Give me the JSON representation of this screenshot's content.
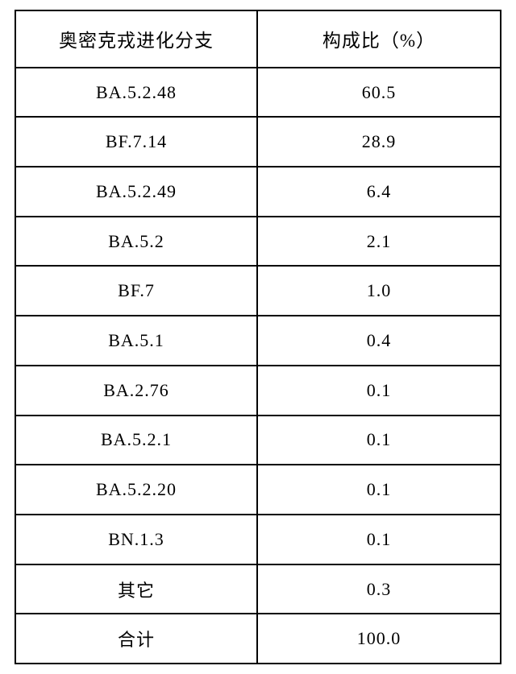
{
  "table": {
    "type": "table",
    "columns": [
      {
        "header": "奥密克戎进化分支",
        "width_pct": 50,
        "align": "center"
      },
      {
        "header": "构成比（%）",
        "width_pct": 50,
        "align": "center"
      }
    ],
    "rows": [
      [
        "BA.5.2.48",
        "60.5"
      ],
      [
        "BF.7.14",
        "28.9"
      ],
      [
        "BA.5.2.49",
        "6.4"
      ],
      [
        "BA.5.2",
        "2.1"
      ],
      [
        "BF.7",
        "1.0"
      ],
      [
        "BA.5.1",
        "0.4"
      ],
      [
        "BA.2.76",
        "0.1"
      ],
      [
        "BA.5.2.1",
        "0.1"
      ],
      [
        "BA.5.2.20",
        "0.1"
      ],
      [
        "BN.1.3",
        "0.1"
      ],
      [
        "其它",
        "0.3"
      ],
      [
        "合计",
        "100.0"
      ]
    ],
    "styling": {
      "border_color": "#000000",
      "border_width": 2,
      "background_color": "#ffffff",
      "text_color": "#000000",
      "header_fontsize": 23,
      "body_fontsize": 22,
      "font_family": "SimSun"
    }
  }
}
